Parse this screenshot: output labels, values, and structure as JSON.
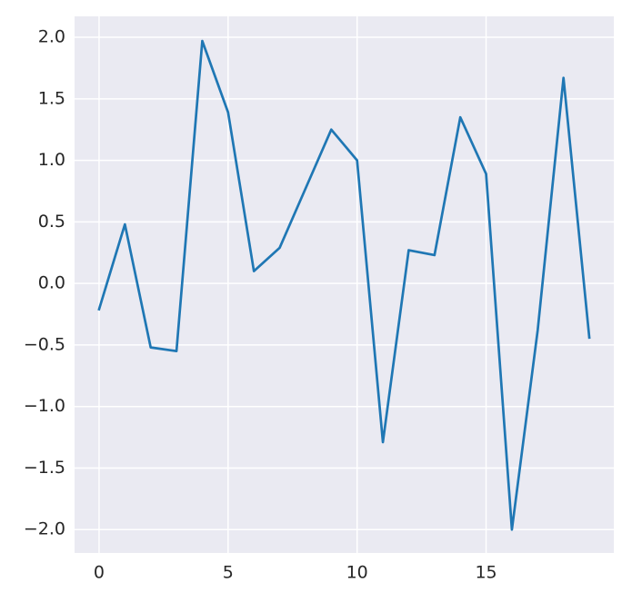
{
  "chart_data": {
    "type": "line",
    "x": [
      0,
      1,
      2,
      3,
      4,
      5,
      6,
      7,
      8,
      9,
      10,
      11,
      12,
      13,
      14,
      15,
      16,
      17,
      18,
      19
    ],
    "series": [
      {
        "color": "#1f77b4",
        "values": [
          -0.21,
          0.48,
          -0.52,
          -0.55,
          1.97,
          1.39,
          0.1,
          0.29,
          0.77,
          1.25,
          1.0,
          -1.29,
          0.27,
          0.23,
          1.35,
          0.89,
          -2.0,
          -0.38,
          1.67,
          -0.44
        ]
      }
    ],
    "xlim": [
      -0.95,
      19.95
    ],
    "xticks": [
      0,
      5,
      10,
      15
    ],
    "ylim": [
      -2.19,
      2.17
    ],
    "yticks": [
      {
        "value": -2.0,
        "label": "−2.0"
      },
      {
        "value": -1.5,
        "label": "−1.5"
      },
      {
        "value": -1.0,
        "label": "−1.0"
      },
      {
        "value": -0.5,
        "label": "−0.5"
      },
      {
        "value": 0,
        "label": "0.0"
      },
      0.5,
      {
        "value": 1,
        "label": "1.0"
      },
      1.5,
      {
        "value": 2,
        "label": "2.0"
      }
    ],
    "grid": true
  }
}
